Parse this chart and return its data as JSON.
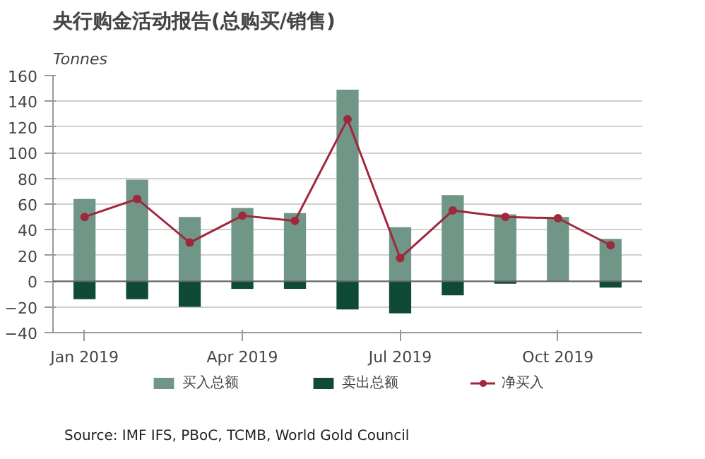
{
  "chart_data": {
    "type": "bar",
    "title": "央行购金活动报告(总购买/销售)",
    "ylabel": "Tonnes",
    "categories": [
      "Jan 2019",
      null,
      null,
      "Apr 2019",
      null,
      null,
      "Jul 2019",
      null,
      null,
      "Oct 2019",
      null
    ],
    "series": [
      {
        "name": "买入总额",
        "color": "#6f9686",
        "values": [
          64,
          79,
          50,
          57,
          53,
          149,
          42,
          67,
          52,
          50,
          33
        ]
      },
      {
        "name": "卖出总额",
        "color": "#0e4a35",
        "values": [
          -14,
          -14,
          -20,
          -6,
          -6,
          -22,
          -25,
          -11,
          -2,
          0,
          -5
        ]
      },
      {
        "name": "净买入",
        "type": "line",
        "color": "#a0283c",
        "marker": "circle",
        "values": [
          50,
          64,
          30,
          51,
          47,
          126,
          18,
          55,
          50,
          49,
          28
        ]
      }
    ],
    "ylim": [
      -40,
      160
    ],
    "yticks": [
      -40,
      -20,
      0,
      20,
      40,
      60,
      80,
      100,
      120,
      140,
      160
    ],
    "stacked": true,
    "grid": "y",
    "legend": "bottom",
    "annotations": [
      "Source: IMF IFS, PBoC, TCMB, World Gold Council"
    ]
  }
}
